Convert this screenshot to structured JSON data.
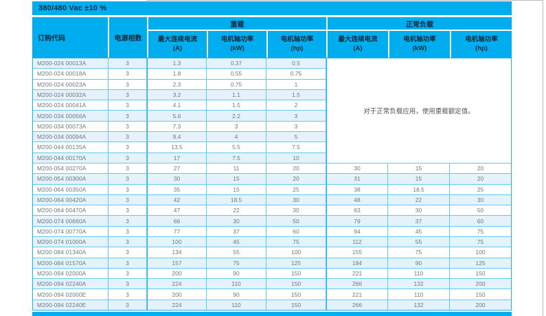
{
  "page": {
    "title_band": "380/480 Vac ±10 %"
  },
  "colors": {
    "cyan": "#00AEEF",
    "outer_cyan": "#1FB0E6",
    "grid_cyan": "#5FC9EE",
    "row_tint": "#E3F2FB",
    "header_text": "#0C2B3C",
    "body_text": "#6E7880"
  },
  "table": {
    "col_headers": {
      "order_code": "订购代码",
      "phases": "电源相数"
    },
    "groups": [
      {
        "label": "重载",
        "cols": [
          {
            "l1": "最大连续电流",
            "l2": "(A)"
          },
          {
            "l1": "电机轴功率",
            "l2": "(kW)"
          },
          {
            "l1": "电机轴功率",
            "l2": "(hp)"
          }
        ]
      },
      {
        "label": "正常负载",
        "cols": [
          {
            "l1": "最大连续电流",
            "l2": "(A)"
          },
          {
            "l1": "电机轴功率",
            "l2": "(kW)"
          },
          {
            "l1": "电机轴功率",
            "l2": "(hp)"
          }
        ]
      }
    ],
    "normal_duty_note": "对于正常负载应用，使用重载额定值。",
    "rows": [
      {
        "code": "M200-024 00013A",
        "phases": "3",
        "hd": [
          "1.3",
          "0.37",
          "0.5"
        ]
      },
      {
        "code": "M200-024 00018A",
        "phases": "3",
        "hd": [
          "1.8",
          "0.55",
          "0.75"
        ]
      },
      {
        "code": "M200-024 00023A",
        "phases": "3",
        "hd": [
          "2.3",
          "0.75",
          "1"
        ]
      },
      {
        "code": "M200-024 00032A",
        "phases": "3",
        "hd": [
          "3.2",
          "1.1",
          "1.5"
        ]
      },
      {
        "code": "M200-024 00041A",
        "phases": "3",
        "hd": [
          "4.1",
          "1.5",
          "2"
        ]
      },
      {
        "code": "M200-034 00056A",
        "phases": "3",
        "hd": [
          "5.6",
          "2.2",
          "3"
        ]
      },
      {
        "code": "M200-034 00073A",
        "phases": "3",
        "hd": [
          "7.3",
          "3",
          "3"
        ]
      },
      {
        "code": "M200-034 00094A",
        "phases": "3",
        "hd": [
          "9.4",
          "4",
          "5"
        ]
      },
      {
        "code": "M200-044 00135A",
        "phases": "3",
        "hd": [
          "13.5",
          "5.5",
          "7.5"
        ]
      },
      {
        "code": "M200-044 00170A",
        "phases": "3",
        "hd": [
          "17",
          "7.5",
          "10"
        ]
      },
      {
        "code": "M200-054 00270A",
        "phases": "3",
        "hd": [
          "27",
          "11",
          "20"
        ],
        "nd": [
          "30",
          "15",
          "20"
        ]
      },
      {
        "code": "M200-054 00300A",
        "phases": "3",
        "hd": [
          "30",
          "15",
          "20"
        ],
        "nd": [
          "31",
          "15",
          "20"
        ]
      },
      {
        "code": "M200-064 00350A",
        "phases": "3",
        "hd": [
          "35",
          "15",
          "25"
        ],
        "nd": [
          "38",
          "18.5",
          "25"
        ]
      },
      {
        "code": "M200-064 00420A",
        "phases": "3",
        "hd": [
          "42",
          "18.5",
          "30"
        ],
        "nd": [
          "48",
          "22",
          "30"
        ]
      },
      {
        "code": "M200-064 00470A",
        "phases": "3",
        "hd": [
          "47",
          "22",
          "30"
        ],
        "nd": [
          "63",
          "30",
          "50"
        ]
      },
      {
        "code": "M200-074 00660A",
        "phases": "3",
        "hd": [
          "66",
          "30",
          "50"
        ],
        "nd": [
          "79",
          "37",
          "60"
        ]
      },
      {
        "code": "M200-074 00770A",
        "phases": "3",
        "hd": [
          "77",
          "37",
          "60"
        ],
        "nd": [
          "94",
          "45",
          "75"
        ]
      },
      {
        "code": "M200-074 01000A",
        "phases": "3",
        "hd": [
          "100",
          "45",
          "75"
        ],
        "nd": [
          "112",
          "55",
          "75"
        ]
      },
      {
        "code": "M200-084 01340A",
        "phases": "3",
        "hd": [
          "134",
          "55",
          "100"
        ],
        "nd": [
          "155",
          "75",
          "100"
        ]
      },
      {
        "code": "M200-084 01570A",
        "phases": "3",
        "hd": [
          "157",
          "75",
          "125"
        ],
        "nd": [
          "184",
          "90",
          "125"
        ]
      },
      {
        "code": "M200-094 02000A",
        "phases": "3",
        "hd": [
          "200",
          "90",
          "150"
        ],
        "nd": [
          "221",
          "110",
          "150"
        ]
      },
      {
        "code": "M200-094 02240A",
        "phases": "3",
        "hd": [
          "224",
          "110",
          "150"
        ],
        "nd": [
          "266",
          "132",
          "200"
        ]
      },
      {
        "code": "M200-094 02000E",
        "phases": "3",
        "hd": [
          "200",
          "90",
          "150"
        ],
        "nd": [
          "221",
          "110",
          "150"
        ]
      },
      {
        "code": "M200-094 02240E",
        "phases": "3",
        "hd": [
          "224",
          "110",
          "150"
        ],
        "nd": [
          "266",
          "132",
          "200"
        ]
      }
    ]
  }
}
